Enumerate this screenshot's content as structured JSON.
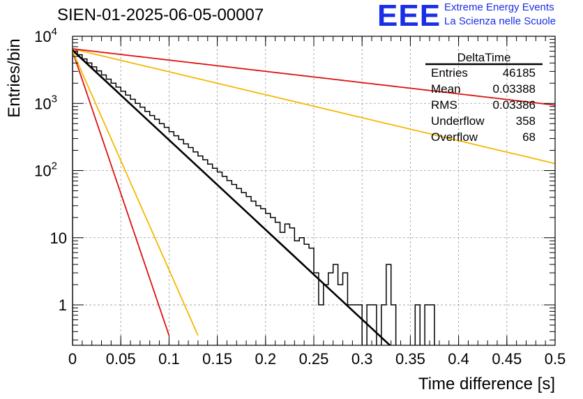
{
  "header": {
    "title": "SIEN-01-2025-06-05-00007",
    "logo_mark": "EEE",
    "logo_line1": "Extreme Energy Events",
    "logo_line2": "La Scienza nelle Scuole"
  },
  "stats_box": {
    "name": "DeltaTime",
    "rows": [
      {
        "label": "Entries",
        "value": "46185"
      },
      {
        "label": "Mean",
        "value": "0.03388"
      },
      {
        "label": "RMS",
        "value": "0.03386"
      },
      {
        "label": "Underflow",
        "value": "358"
      },
      {
        "label": "Overflow",
        "value": "68"
      }
    ]
  },
  "chart_data": {
    "type": "line",
    "title": "SIEN-01-2025-06-05-00007",
    "xlabel": "Time difference [s]",
    "ylabel": "Entries/bin",
    "xlim": [
      0,
      0.5
    ],
    "ylim": [
      0.25,
      10000
    ],
    "yscale": "log",
    "grid": true,
    "x_ticks": [
      "0",
      "0.05",
      "0.1",
      "0.15",
      "0.2",
      "0.25",
      "0.3",
      "0.35",
      "0.4",
      "0.45",
      "0.5"
    ],
    "y_ticks": [
      {
        "value": 1,
        "label": "1"
      },
      {
        "value": 10,
        "label": "10"
      },
      {
        "value": 100,
        "label": "10^2"
      },
      {
        "value": 1000,
        "label": "10^3"
      },
      {
        "value": 10000,
        "label": "10^4"
      }
    ],
    "histogram": {
      "name": "DeltaTime",
      "color": "#000000",
      "points": [
        [
          0.0,
          6000
        ],
        [
          0.005,
          5300
        ],
        [
          0.01,
          4600
        ],
        [
          0.015,
          4000
        ],
        [
          0.02,
          3500
        ],
        [
          0.025,
          3050
        ],
        [
          0.03,
          2650
        ],
        [
          0.035,
          2300
        ],
        [
          0.04,
          2000
        ],
        [
          0.045,
          1750
        ],
        [
          0.05,
          1520
        ],
        [
          0.055,
          1330
        ],
        [
          0.06,
          1150
        ],
        [
          0.065,
          1000
        ],
        [
          0.07,
          880
        ],
        [
          0.075,
          760
        ],
        [
          0.08,
          660
        ],
        [
          0.085,
          580
        ],
        [
          0.09,
          500
        ],
        [
          0.095,
          440
        ],
        [
          0.1,
          380
        ],
        [
          0.105,
          330
        ],
        [
          0.11,
          290
        ],
        [
          0.115,
          250
        ],
        [
          0.12,
          220
        ],
        [
          0.125,
          190
        ],
        [
          0.13,
          165
        ],
        [
          0.135,
          145
        ],
        [
          0.14,
          125
        ],
        [
          0.145,
          108
        ],
        [
          0.15,
          95
        ],
        [
          0.155,
          82
        ],
        [
          0.16,
          71
        ],
        [
          0.165,
          62
        ],
        [
          0.17,
          54
        ],
        [
          0.175,
          47
        ],
        [
          0.18,
          41
        ],
        [
          0.185,
          35
        ],
        [
          0.19,
          30
        ],
        [
          0.195,
          27
        ],
        [
          0.2,
          23
        ],
        [
          0.205,
          20
        ],
        [
          0.21,
          17
        ],
        [
          0.215,
          12
        ],
        [
          0.22,
          16
        ],
        [
          0.225,
          14
        ],
        [
          0.23,
          9
        ],
        [
          0.235,
          10
        ],
        [
          0.24,
          8
        ],
        [
          0.245,
          7
        ],
        [
          0.25,
          3
        ],
        [
          0.255,
          1
        ],
        [
          0.26,
          2
        ],
        [
          0.265,
          3
        ],
        [
          0.27,
          4
        ],
        [
          0.275,
          2
        ],
        [
          0.28,
          3
        ],
        [
          0.285,
          1
        ],
        [
          0.29,
          1
        ],
        [
          0.295,
          1
        ],
        [
          0.3,
          0
        ],
        [
          0.305,
          1
        ],
        [
          0.31,
          1
        ],
        [
          0.315,
          0
        ],
        [
          0.32,
          1
        ],
        [
          0.325,
          4
        ],
        [
          0.33,
          1
        ],
        [
          0.335,
          0
        ],
        [
          0.34,
          0
        ],
        [
          0.345,
          0
        ],
        [
          0.35,
          0
        ],
        [
          0.355,
          1
        ],
        [
          0.36,
          0
        ],
        [
          0.365,
          1
        ],
        [
          0.37,
          1
        ]
      ]
    },
    "series": [
      {
        "name": "fit",
        "color": "#000000",
        "width": 2.6,
        "A": 6200,
        "slope": -30.77,
        "x_range": [
          0,
          0.35
        ]
      },
      {
        "name": "red-steep",
        "color": "#dd1111",
        "width": 1.8,
        "A": 6000,
        "slope": -97.5,
        "x_range": [
          0,
          0.1
        ]
      },
      {
        "name": "yellow-steep",
        "color": "#f5b800",
        "width": 1.8,
        "A": 6000,
        "slope": -75.0,
        "x_range": [
          0,
          0.13
        ]
      },
      {
        "name": "yellow-shallow",
        "color": "#f5b800",
        "width": 1.8,
        "A": 6500,
        "slope": -7.87,
        "x_range": [
          0,
          0.5
        ]
      },
      {
        "name": "red-shallow",
        "color": "#dd1111",
        "width": 1.8,
        "A": 6500,
        "slope": -3.86,
        "x_range": [
          0,
          0.5
        ]
      }
    ]
  }
}
